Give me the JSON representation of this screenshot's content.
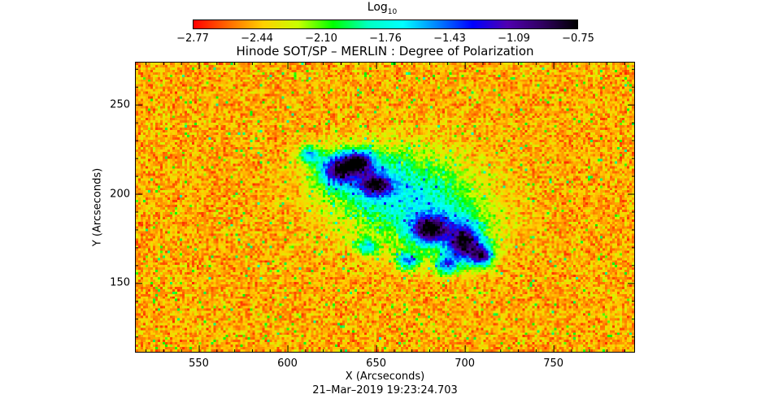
{
  "chart_data": {
    "type": "heatmap",
    "title": "Hinode SOT/SP – MERLIN : Degree of Polarization",
    "xlabel": "X (Arcseconds)",
    "ylabel": "Y (Arcseconds)",
    "subtitle": "21–Mar–2019  19:23:24.703",
    "xlim": [
      514,
      796
    ],
    "ylim": [
      111,
      274
    ],
    "xticks": [
      550,
      600,
      650,
      700,
      750
    ],
    "yticks": [
      150,
      200,
      250
    ],
    "colorbar": {
      "label_main": "Log",
      "label_sub": "10",
      "range": [
        -2.77,
        -0.75
      ],
      "ticks": [
        "-2.77",
        "-2.44",
        "-2.10",
        "-1.76",
        "-1.43",
        "-1.09",
        "-0.75"
      ],
      "colormap": [
        "#ff0000",
        "#ff6a00",
        "#ffd000",
        "#c8ff00",
        "#00ff00",
        "#00ffc0",
        "#00ffff",
        "#0080ff",
        "#0000ff",
        "#5000b0",
        "#300060",
        "#000000"
      ],
      "position": "top"
    },
    "grid": false
  }
}
